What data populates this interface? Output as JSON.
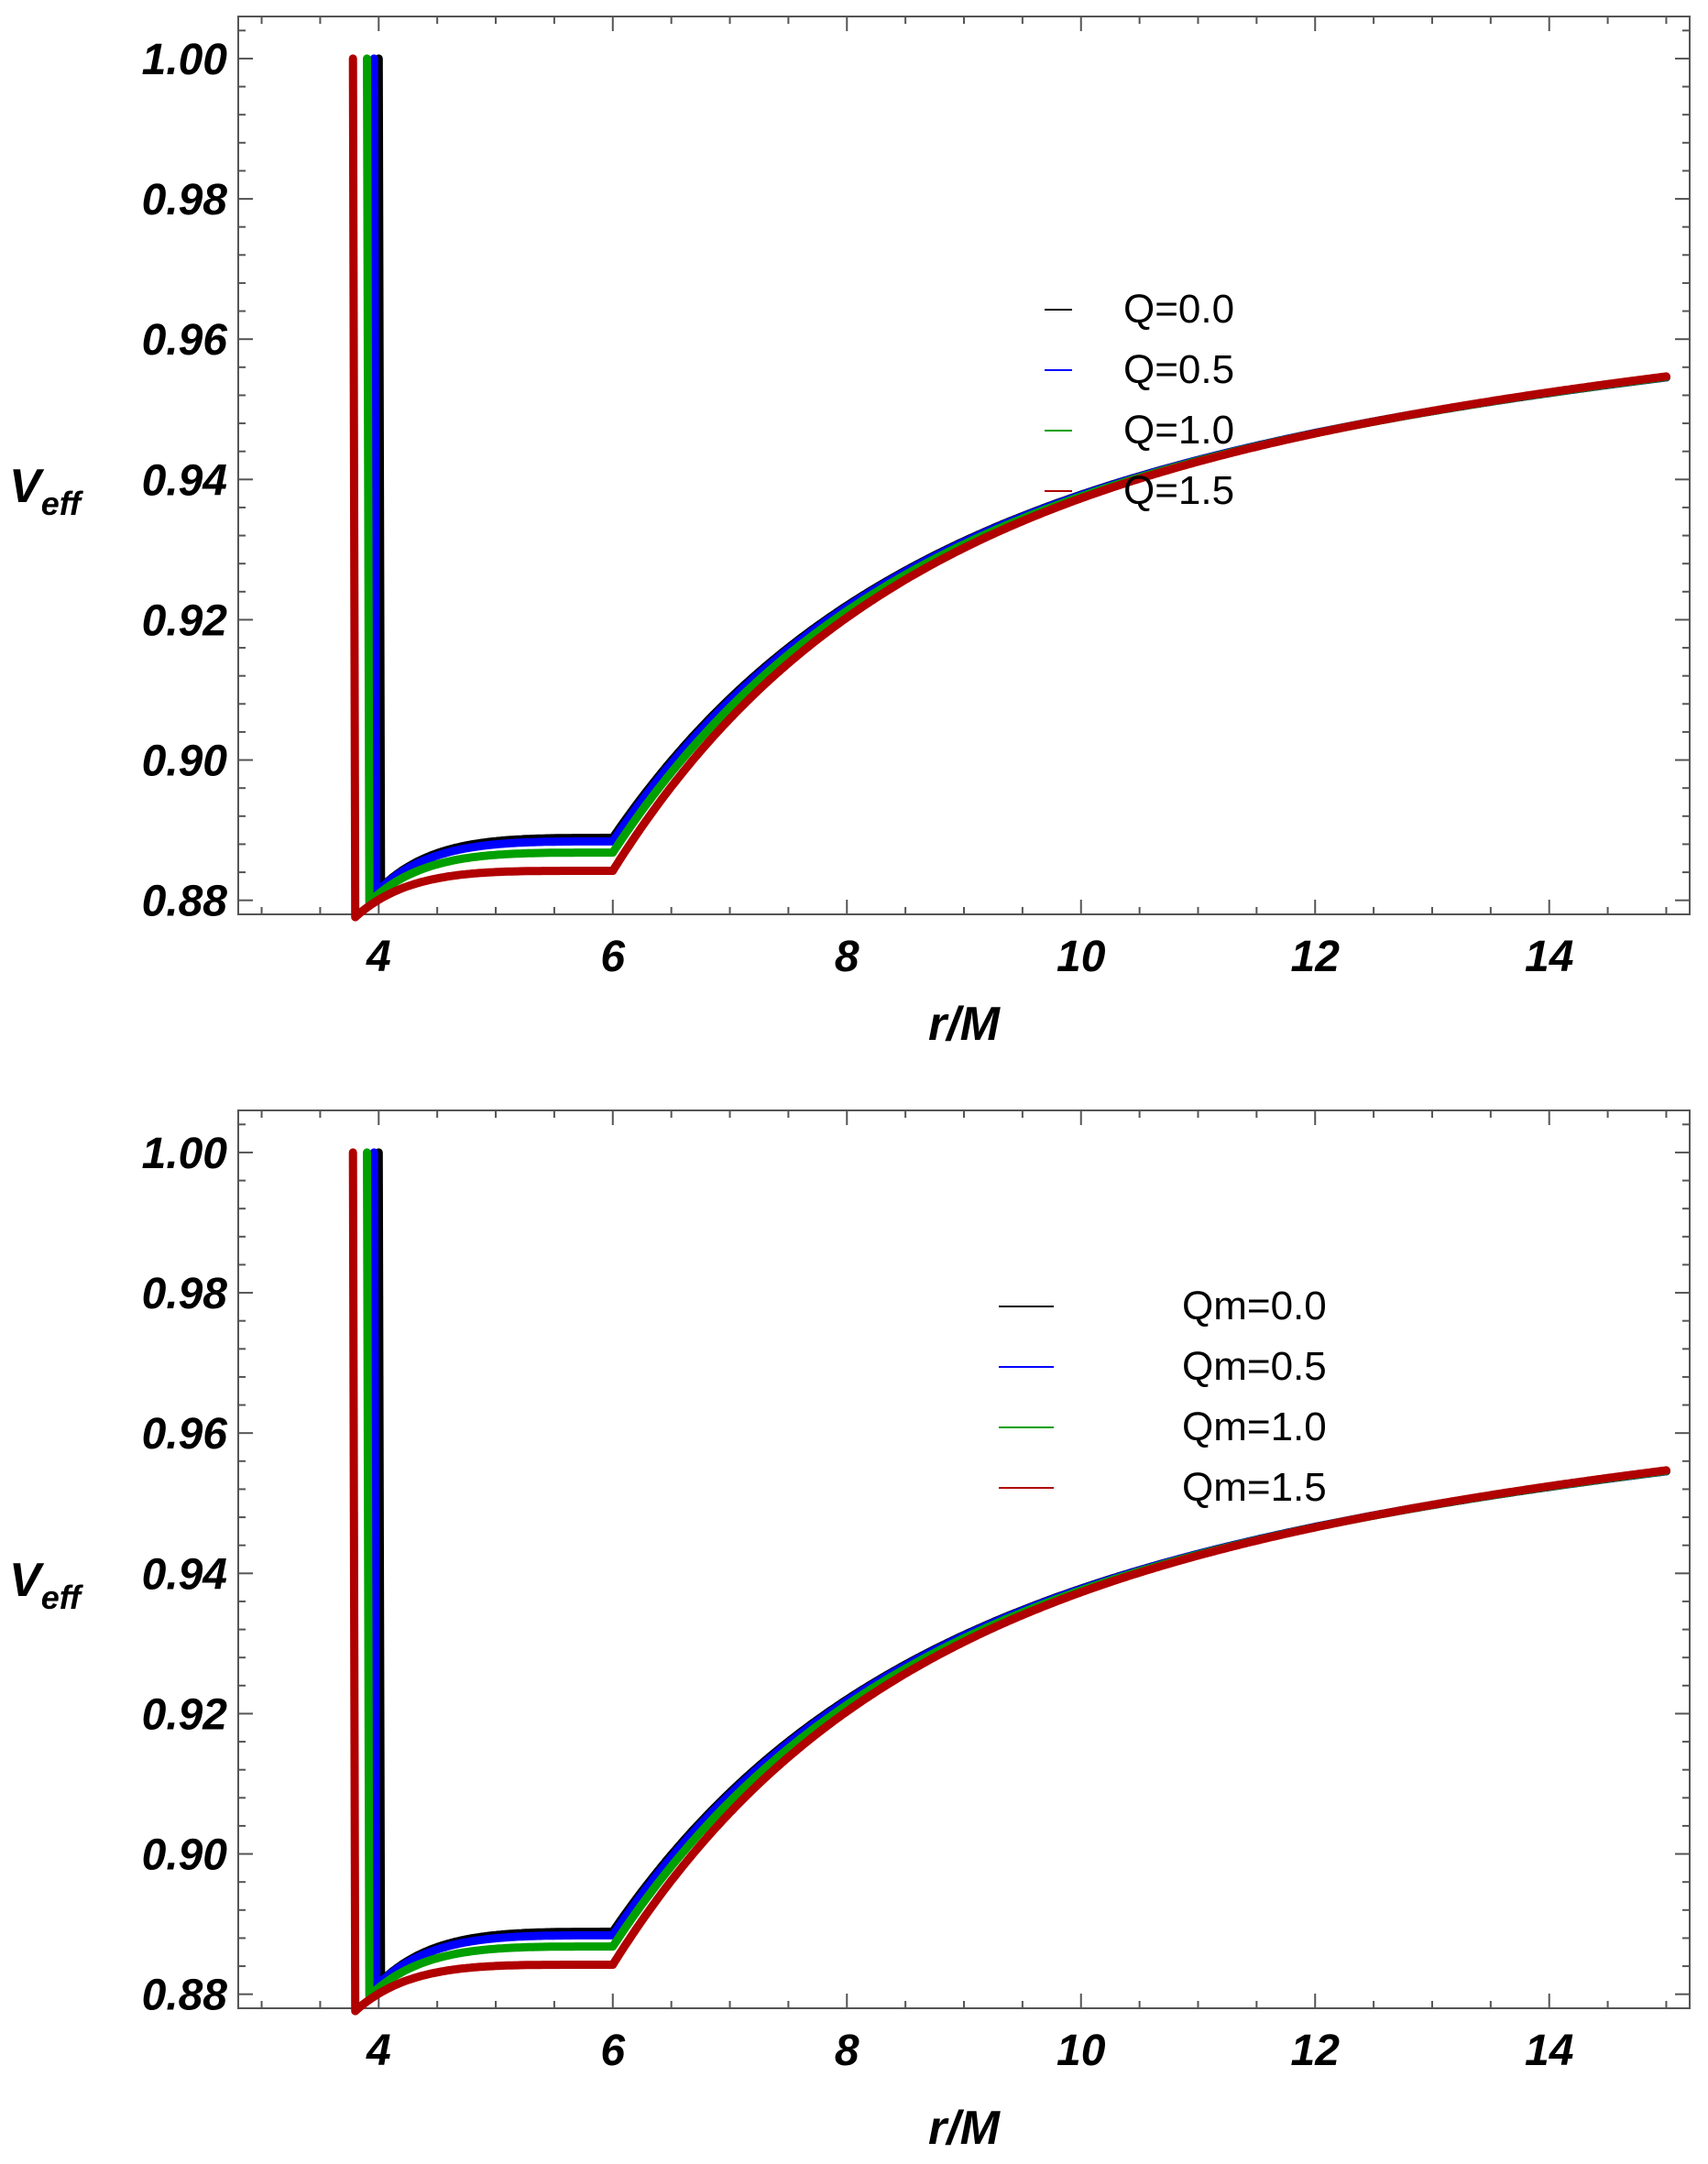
{
  "chart_data": [
    {
      "type": "line",
      "xlabel": "r/M",
      "ylabel_main": "V",
      "ylabel_sub": "eff",
      "xlim": [
        2.8,
        15.2
      ],
      "ylim": [
        0.878,
        1.006
      ],
      "xticks": [
        {
          "value": 4,
          "label": "4"
        },
        {
          "value": 6,
          "label": "6"
        },
        {
          "value": 8,
          "label": "8"
        },
        {
          "value": 10,
          "label": "10"
        },
        {
          "value": 12,
          "label": "12"
        },
        {
          "value": 14,
          "label": "14"
        }
      ],
      "yticks": [
        {
          "value": 0.88,
          "label": "0.88"
        },
        {
          "value": 0.9,
          "label": "0.90"
        },
        {
          "value": 0.92,
          "label": "0.92"
        },
        {
          "value": 0.94,
          "label": "0.94"
        },
        {
          "value": 0.96,
          "label": "0.96"
        },
        {
          "value": 0.98,
          "label": "0.98"
        },
        {
          "value": 1.0,
          "label": "1.00"
        }
      ],
      "legend_position": "upper-right",
      "series": [
        {
          "name": "Q=0.0",
          "color": "#000000",
          "r_start": 4.0,
          "r_min": 6.0,
          "v_min": 0.8889
        },
        {
          "name": "Q=0.5",
          "color": "#0000ff",
          "r_start": 3.96,
          "r_min": 5.97,
          "v_min": 0.8884
        },
        {
          "name": "Q=1.0",
          "color": "#00a000",
          "r_start": 3.9,
          "r_min": 5.9,
          "v_min": 0.8868
        },
        {
          "name": "Q=1.5",
          "color": "#b00000",
          "r_start": 3.78,
          "r_min": 5.75,
          "v_min": 0.8842
        }
      ]
    },
    {
      "type": "line",
      "xlabel": "r/M",
      "ylabel_main": "V",
      "ylabel_sub": "eff",
      "xlim": [
        2.8,
        15.2
      ],
      "ylim": [
        0.878,
        1.006
      ],
      "xticks": [
        {
          "value": 4,
          "label": "4"
        },
        {
          "value": 6,
          "label": "6"
        },
        {
          "value": 8,
          "label": "8"
        },
        {
          "value": 10,
          "label": "10"
        },
        {
          "value": 12,
          "label": "12"
        },
        {
          "value": 14,
          "label": "14"
        }
      ],
      "yticks": [
        {
          "value": 0.88,
          "label": "0.88"
        },
        {
          "value": 0.9,
          "label": "0.90"
        },
        {
          "value": 0.92,
          "label": "0.92"
        },
        {
          "value": 0.94,
          "label": "0.94"
        },
        {
          "value": 0.96,
          "label": "0.96"
        },
        {
          "value": 0.98,
          "label": "0.98"
        },
        {
          "value": 1.0,
          "label": "1.00"
        }
      ],
      "legend_position": "upper-right",
      "series": [
        {
          "name": "Qm=0.0",
          "color": "#000000",
          "r_start": 4.0,
          "r_min": 6.0,
          "v_min": 0.8889
        },
        {
          "name": "Qm=0.5",
          "color": "#0000ff",
          "r_start": 3.96,
          "r_min": 5.97,
          "v_min": 0.8884
        },
        {
          "name": "Qm=1.0",
          "color": "#00a000",
          "r_start": 3.9,
          "r_min": 5.9,
          "v_min": 0.8868
        },
        {
          "name": "Qm=1.5",
          "color": "#b00000",
          "r_start": 3.78,
          "r_min": 5.75,
          "v_min": 0.8842
        }
      ]
    }
  ]
}
